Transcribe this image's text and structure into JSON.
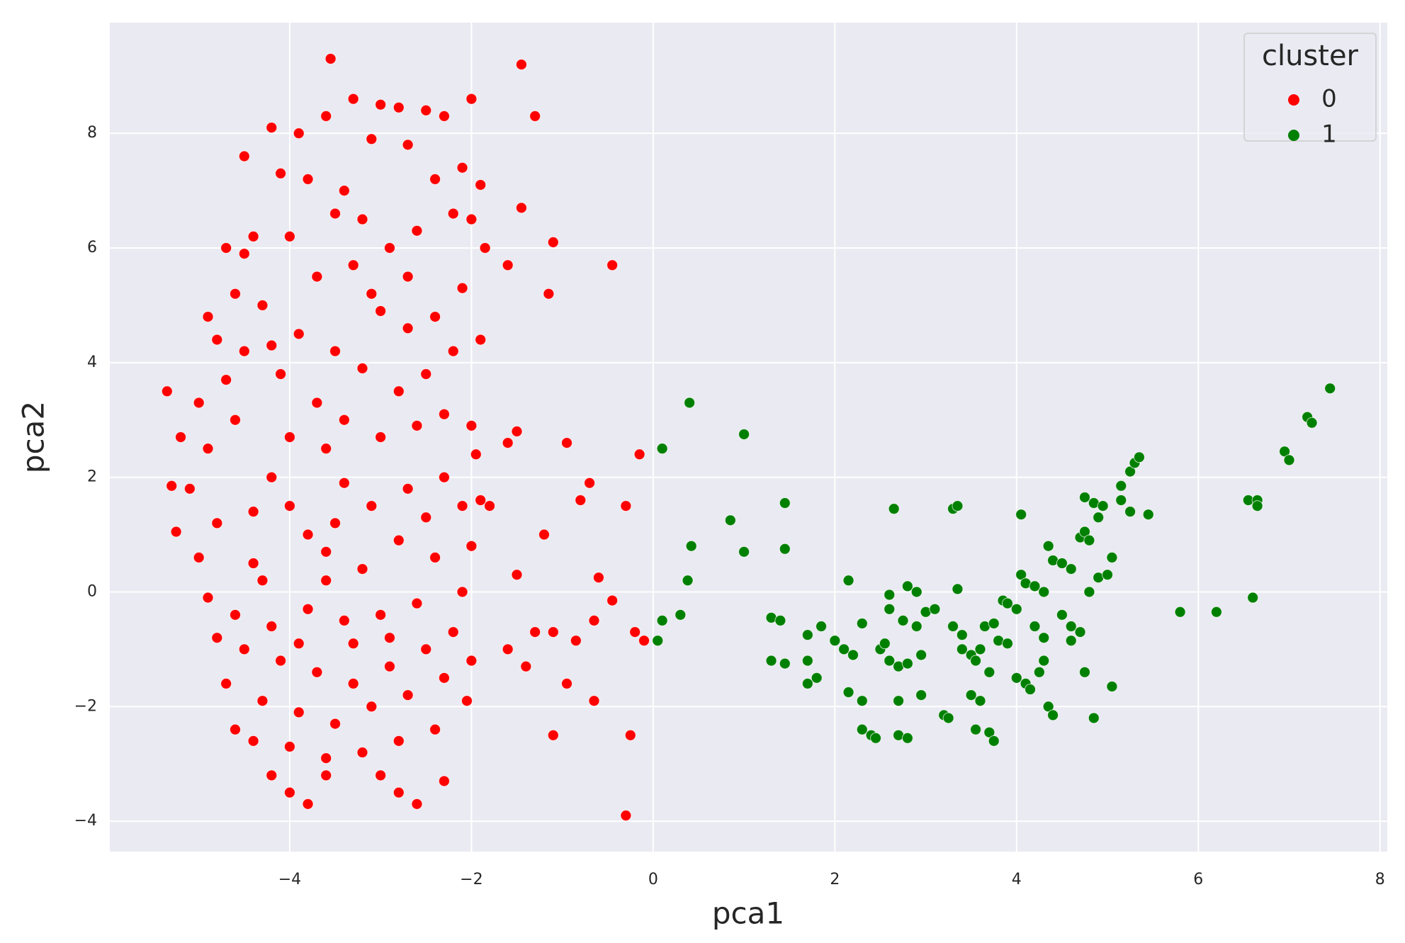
{
  "chart_data": {
    "type": "scatter",
    "x_label": "pca1",
    "y_label": "pca2",
    "xlim": [
      -5.98,
      8.08
    ],
    "ylim": [
      -4.53,
      9.93
    ],
    "xticks": [
      {
        "value": -4,
        "label": "−4"
      },
      {
        "value": -2,
        "label": "−2"
      },
      0,
      2,
      4,
      6,
      8
    ],
    "yticks": [
      {
        "value": -4,
        "label": "−4"
      },
      {
        "value": -2,
        "label": "−2"
      },
      0,
      2,
      4,
      6,
      8
    ],
    "grid": true,
    "legend_title": "cluster",
    "legend_position": "upper right",
    "series": [
      {
        "name": "0",
        "color": "#ff0000",
        "x": [
          -4.0,
          -4.2,
          -3.8,
          -4.4,
          -3.6,
          -4.6,
          -4.1,
          -3.9,
          -4.3,
          -3.7,
          -4.5,
          -4.0,
          -3.5,
          -3.2,
          -3.4,
          -3.8,
          -4.1,
          -4.5,
          -4.2,
          -3.9,
          -3.6,
          -3.3,
          -3.0,
          -2.8,
          -2.5,
          -2.3,
          -2.0,
          -2.7,
          -3.1,
          -2.4,
          -2.1,
          -1.9,
          -2.2,
          -2.6,
          -2.9,
          -3.3,
          -2.0,
          -1.85,
          -2.1,
          -2.4,
          -2.7,
          -3.0,
          -2.2,
          -1.9,
          -2.5,
          -2.8,
          -3.2,
          -3.5,
          -3.4,
          -3.0,
          -2.6,
          -2.3,
          -2.0,
          -1.95,
          -2.3,
          -2.7,
          -3.1,
          -3.4,
          -2.5,
          -2.1,
          -1.8,
          -2.0,
          -2.4,
          -2.8,
          -3.2,
          -3.6,
          -2.1,
          -2.6,
          -3.0,
          -3.4,
          -3.8,
          -4.2,
          -4.6,
          -4.9,
          -5.0,
          -4.8,
          -5.1,
          -4.9,
          -4.7,
          -4.8,
          -4.6,
          -4.9,
          -5.0,
          -4.5,
          -4.4,
          -4.7,
          -2.2,
          -2.5,
          -2.9,
          -3.3,
          -3.7,
          -4.1,
          -4.5,
          -4.8,
          -4.7,
          -4.3,
          -3.9,
          -3.5,
          -3.1,
          -2.7,
          -2.3,
          -2.0,
          -2.05,
          -2.4,
          -2.8,
          -3.2,
          -3.6,
          -4.0,
          -4.4,
          -4.6,
          -4.2,
          -4.0,
          -3.8,
          -3.6,
          -3.0,
          -2.8,
          -2.6,
          -2.3,
          -3.9,
          -4.3,
          -3.5,
          -3.3,
          -2.9,
          -4.4,
          -3.7,
          -4.0,
          -3.1,
          -2.7,
          -4.2,
          -3.6,
          -3.55,
          -1.45,
          -1.3,
          -1.1,
          -0.45,
          -1.15,
          -0.95,
          -0.7,
          -0.8,
          -0.3,
          -0.15,
          -0.6,
          -0.45,
          -0.65,
          -0.85,
          -0.2,
          -0.1,
          -0.95,
          -0.65,
          -1.1,
          -0.25,
          -0.3,
          -1.1,
          -1.3,
          -1.4,
          -1.6,
          -1.5,
          -1.2,
          -1.9,
          -1.6,
          -5.35,
          -5.3,
          -5.25,
          -5.2,
          -1.45,
          -1.6,
          -1.5
        ],
        "y": [
          1.5,
          2.0,
          1.0,
          0.5,
          2.5,
          3.0,
          3.8,
          4.5,
          5.0,
          5.5,
          5.9,
          6.2,
          6.6,
          6.5,
          7.0,
          7.2,
          7.3,
          7.6,
          8.1,
          8.0,
          8.3,
          8.6,
          8.5,
          8.45,
          8.4,
          8.3,
          8.6,
          7.8,
          7.9,
          7.2,
          7.4,
          7.1,
          6.6,
          6.3,
          6.0,
          5.7,
          6.5,
          6.0,
          5.3,
          4.8,
          4.6,
          4.9,
          4.2,
          4.4,
          3.8,
          3.5,
          3.9,
          4.2,
          3.0,
          2.7,
          2.9,
          3.1,
          2.9,
          2.4,
          2.0,
          1.8,
          1.5,
          1.9,
          1.3,
          1.5,
          1.5,
          0.8,
          0.6,
          0.9,
          0.4,
          0.2,
          0.0,
          -0.2,
          -0.4,
          -0.5,
          -0.3,
          -0.6,
          -0.4,
          -0.1,
          0.6,
          1.2,
          1.8,
          2.5,
          3.7,
          4.4,
          5.2,
          4.8,
          3.3,
          4.2,
          6.2,
          6.0,
          -0.7,
          -1.0,
          -1.3,
          -1.6,
          -1.4,
          -1.2,
          -1.0,
          -0.8,
          -1.6,
          -1.9,
          -2.1,
          -2.3,
          -2.0,
          -1.8,
          -1.5,
          -1.2,
          -1.9,
          -2.4,
          -2.6,
          -2.8,
          -2.9,
          -2.7,
          -2.6,
          -2.4,
          -3.2,
          -3.5,
          -3.7,
          -3.2,
          -3.2,
          -3.5,
          -3.7,
          -3.3,
          -0.9,
          0.2,
          1.2,
          -0.9,
          -0.8,
          1.4,
          3.3,
          2.7,
          5.2,
          5.5,
          4.3,
          0.7,
          9.3,
          9.2,
          8.3,
          6.1,
          5.7,
          5.2,
          2.6,
          1.9,
          1.6,
          1.5,
          2.4,
          0.25,
          -0.15,
          -0.5,
          -0.85,
          -0.7,
          -0.85,
          -1.6,
          -1.9,
          -2.5,
          -2.5,
          -3.9,
          -0.7,
          -0.7,
          -1.3,
          -1.0,
          0.3,
          1.0,
          1.6,
          2.6,
          3.5,
          1.85,
          1.05,
          2.7,
          6.7,
          5.7,
          2.8
        ]
      },
      {
        "name": "1",
        "color": "#008000",
        "x": [
          0.1,
          0.4,
          1.0,
          0.85,
          1.45,
          1.45,
          1.0,
          0.42,
          0.38,
          0.3,
          0.1,
          0.05,
          1.3,
          1.4,
          1.3,
          1.45,
          1.7,
          1.8,
          1.7,
          1.85,
          1.7,
          2.0,
          2.1,
          2.2,
          2.15,
          2.15,
          2.3,
          2.3,
          2.4,
          2.45,
          2.3,
          2.5,
          2.55,
          2.6,
          2.7,
          2.8,
          2.6,
          2.6,
          2.8,
          2.9,
          2.65,
          2.75,
          2.9,
          2.95,
          2.7,
          2.7,
          2.8,
          2.95,
          3.0,
          3.1,
          3.2,
          3.25,
          3.3,
          3.35,
          3.35,
          3.3,
          3.4,
          3.5,
          3.55,
          3.6,
          3.4,
          3.5,
          3.6,
          3.55,
          3.7,
          3.75,
          3.65,
          3.75,
          3.7,
          3.8,
          3.9,
          3.85,
          3.9,
          4.0,
          4.05,
          4.1,
          4.2,
          4.3,
          4.05,
          4.0,
          4.1,
          4.15,
          4.25,
          4.3,
          4.2,
          4.3,
          4.35,
          4.4,
          4.35,
          4.4,
          4.5,
          4.6,
          4.5,
          4.6,
          4.7,
          4.6,
          4.7,
          4.75,
          4.8,
          4.75,
          4.85,
          4.95,
          4.9,
          4.9,
          5.0,
          5.05,
          4.8,
          4.75,
          4.85,
          5.05,
          5.15,
          5.15,
          5.25,
          5.3,
          5.35,
          5.25,
          5.45,
          5.8,
          6.2,
          6.55,
          6.65,
          6.65,
          6.6,
          6.95,
          7.0,
          7.2,
          7.25,
          7.45
        ],
        "y": [
          2.5,
          3.3,
          2.75,
          1.25,
          1.55,
          0.75,
          0.7,
          0.8,
          0.2,
          -0.4,
          -0.5,
          -0.85,
          -0.45,
          -0.5,
          -1.2,
          -1.25,
          -1.2,
          -1.5,
          -1.6,
          -0.6,
          -0.75,
          -0.85,
          -1.0,
          -1.1,
          0.2,
          -1.75,
          -1.9,
          -2.4,
          -2.5,
          -2.55,
          -0.55,
          -1.0,
          -0.9,
          -1.2,
          -1.3,
          -1.25,
          -0.3,
          -0.05,
          0.1,
          0.0,
          1.45,
          -0.5,
          -0.6,
          -1.1,
          -1.9,
          -2.5,
          -2.55,
          -1.8,
          -0.35,
          -0.3,
          -2.15,
          -2.2,
          1.45,
          1.5,
          0.05,
          -0.6,
          -1.0,
          -1.1,
          -1.2,
          -1.0,
          -0.75,
          -1.8,
          -1.9,
          -2.4,
          -2.45,
          -2.6,
          -0.6,
          -0.55,
          -1.4,
          -0.85,
          -0.9,
          -0.15,
          -0.2,
          -0.3,
          0.3,
          0.15,
          0.1,
          0.0,
          1.35,
          -1.5,
          -1.6,
          -1.7,
          -1.4,
          -1.2,
          -0.6,
          -0.8,
          -2.0,
          -2.15,
          0.8,
          0.55,
          0.5,
          0.4,
          -0.4,
          -0.6,
          -0.7,
          -0.85,
          0.95,
          1.05,
          0.9,
          1.65,
          1.55,
          1.5,
          1.3,
          0.25,
          0.3,
          0.6,
          0.0,
          -1.4,
          -2.2,
          -1.65,
          1.6,
          1.85,
          2.1,
          2.25,
          2.35,
          1.4,
          1.35,
          -0.35,
          -0.35,
          1.6,
          1.6,
          1.5,
          -0.1,
          2.45,
          2.3,
          3.05,
          2.95,
          3.55
        ]
      }
    ]
  }
}
